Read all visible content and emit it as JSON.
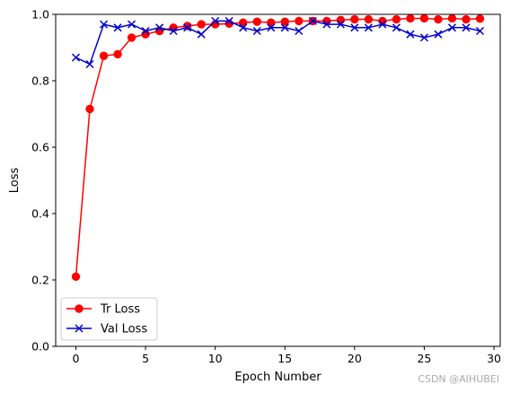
{
  "chart_data": {
    "type": "line",
    "xlabel": "Epoch Number",
    "ylabel": "Loss",
    "xlim": [
      -1.45,
      30.45
    ],
    "ylim": [
      0.0,
      1.0
    ],
    "xticks": [
      0,
      5,
      10,
      15,
      20,
      25,
      30
    ],
    "yticks": [
      0.0,
      0.2,
      0.4,
      0.6,
      0.8,
      1.0
    ],
    "xtick_labels": [
      "0",
      "5",
      "10",
      "15",
      "20",
      "25",
      "30"
    ],
    "ytick_labels": [
      "0.0",
      "0.2",
      "0.4",
      "0.6",
      "0.8",
      "1.0"
    ],
    "grid": false,
    "legend_position": "lower-left",
    "x": [
      0,
      1,
      2,
      3,
      4,
      5,
      6,
      7,
      8,
      9,
      10,
      11,
      12,
      13,
      14,
      15,
      16,
      17,
      18,
      19,
      20,
      21,
      22,
      23,
      24,
      25,
      26,
      27,
      28,
      29
    ],
    "series": [
      {
        "name": "Tr Loss",
        "color": "#ff0000",
        "marker": "circle",
        "values": [
          0.21,
          0.715,
          0.875,
          0.88,
          0.93,
          0.94,
          0.95,
          0.96,
          0.965,
          0.97,
          0.97,
          0.972,
          0.975,
          0.978,
          0.975,
          0.978,
          0.98,
          0.98,
          0.98,
          0.983,
          0.985,
          0.985,
          0.98,
          0.985,
          0.988,
          0.988,
          0.985,
          0.988,
          0.985,
          0.987
        ]
      },
      {
        "name": "Val Loss",
        "color": "#0000cc",
        "marker": "x",
        "values": [
          0.87,
          0.85,
          0.97,
          0.96,
          0.97,
          0.95,
          0.96,
          0.95,
          0.96,
          0.94,
          0.98,
          0.98,
          0.96,
          0.95,
          0.96,
          0.96,
          0.95,
          0.98,
          0.97,
          0.97,
          0.96,
          0.96,
          0.97,
          0.96,
          0.94,
          0.93,
          0.94,
          0.96,
          0.96,
          0.95
        ]
      }
    ]
  },
  "watermark": "CSDN @AIHUBEI"
}
